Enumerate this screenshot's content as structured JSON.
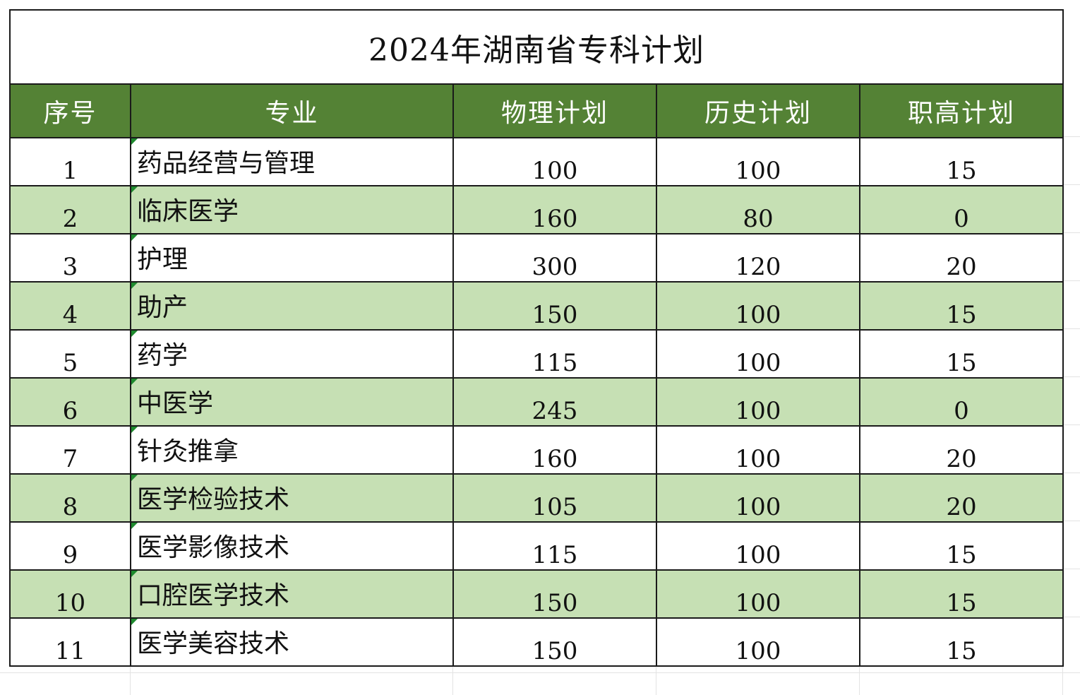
{
  "title": "2024年湖南省专科计划",
  "headers": {
    "index": "序号",
    "major": "专业",
    "physics": "物理计划",
    "history": "历史计划",
    "vocational": "职高计划"
  },
  "rows": [
    {
      "index": "1",
      "major": "药品经营与管理",
      "physics": "100",
      "history": "100",
      "vocational": "15"
    },
    {
      "index": "2",
      "major": "临床医学",
      "physics": "160",
      "history": "80",
      "vocational": "0"
    },
    {
      "index": "3",
      "major": "护理",
      "physics": "300",
      "history": "120",
      "vocational": "20"
    },
    {
      "index": "4",
      "major": "助产",
      "physics": "150",
      "history": "100",
      "vocational": "15"
    },
    {
      "index": "5",
      "major": "药学",
      "physics": "115",
      "history": "100",
      "vocational": "15"
    },
    {
      "index": "6",
      "major": "中医学",
      "physics": "245",
      "history": "100",
      "vocational": "0"
    },
    {
      "index": "7",
      "major": "针灸推拿",
      "physics": "160",
      "history": "100",
      "vocational": "20"
    },
    {
      "index": "8",
      "major": "医学检验技术",
      "physics": "105",
      "history": "100",
      "vocational": "20"
    },
    {
      "index": "9",
      "major": "医学影像技术",
      "physics": "115",
      "history": "100",
      "vocational": "15"
    },
    {
      "index": "10",
      "major": "口腔医学技术",
      "physics": "150",
      "history": "100",
      "vocational": "15"
    },
    {
      "index": "11",
      "major": "医学美容技术",
      "physics": "150",
      "history": "100",
      "vocational": "15"
    }
  ],
  "colors": {
    "header_bg": "#548235",
    "header_text": "#ffffff",
    "alt_row_bg": "#c6e0b4",
    "border": "#1a1a1a"
  }
}
